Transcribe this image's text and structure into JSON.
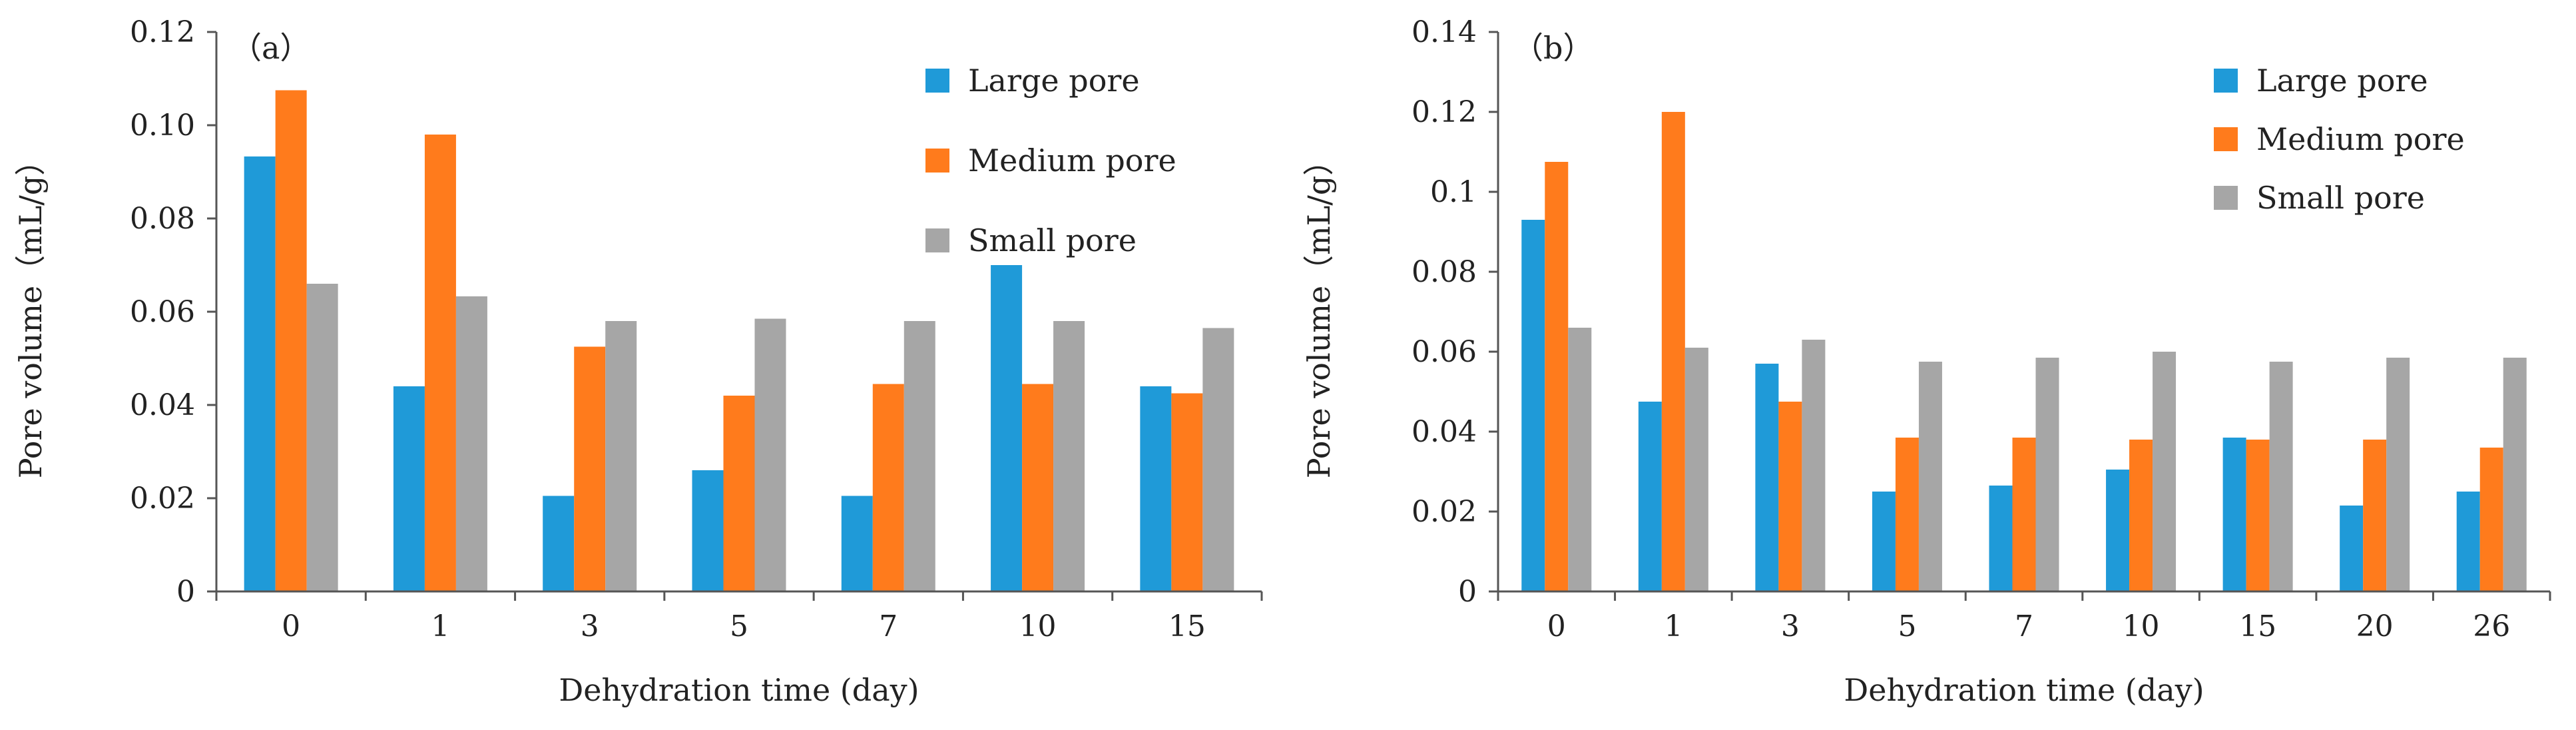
{
  "chart_data": [
    {
      "panel_label": "（a）",
      "type": "bar",
      "categories": [
        "0",
        "1",
        "3",
        "5",
        "7",
        "10",
        "15"
      ],
      "series": [
        {
          "name": "Large pore",
          "color": "#1f9ad8",
          "values": [
            0.0933,
            0.044,
            0.0205,
            0.026,
            0.0205,
            0.07,
            0.044
          ]
        },
        {
          "name": "Medium pore",
          "color": "#ff7b1c",
          "values": [
            0.1075,
            0.098,
            0.0525,
            0.042,
            0.0445,
            0.0445,
            0.0425
          ]
        },
        {
          "name": "Small pore",
          "color": "#a6a6a6",
          "values": [
            0.066,
            0.0633,
            0.058,
            0.0585,
            0.058,
            0.058,
            0.0565
          ]
        }
      ],
      "xlabel": "Dehydration time (day)",
      "ylabel": "Pore volume（mL/g）",
      "ylim": [
        0,
        0.12
      ],
      "yticks": [
        "0",
        "0.02",
        "0.04",
        "0.06",
        "0.08",
        "0.10",
        "0.12"
      ],
      "legend_position": "top-right",
      "grid": false
    },
    {
      "panel_label": "（b）",
      "type": "bar",
      "categories": [
        "0",
        "1",
        "3",
        "5",
        "7",
        "10",
        "15",
        "20",
        "26"
      ],
      "series": [
        {
          "name": "Large pore",
          "color": "#1f9ad8",
          "values": [
            0.093,
            0.0475,
            0.057,
            0.025,
            0.0265,
            0.0305,
            0.0385,
            0.0215,
            0.025
          ]
        },
        {
          "name": "Medium pore",
          "color": "#ff7b1c",
          "values": [
            0.1075,
            0.12,
            0.0475,
            0.0385,
            0.0385,
            0.038,
            0.038,
            0.038,
            0.036
          ]
        },
        {
          "name": "Small pore",
          "color": "#a6a6a6",
          "values": [
            0.066,
            0.061,
            0.063,
            0.0575,
            0.0585,
            0.06,
            0.0575,
            0.0585,
            0.0585
          ]
        }
      ],
      "xlabel": "Dehydration time (day)",
      "ylabel": "Pore volume（mL/g）",
      "ylim": [
        0,
        0.14
      ],
      "yticks": [
        "0",
        "0.02",
        "0.04",
        "0.06",
        "0.08",
        "0.1",
        "0.12",
        "0.14"
      ],
      "legend_position": "top-right",
      "grid": false
    }
  ]
}
